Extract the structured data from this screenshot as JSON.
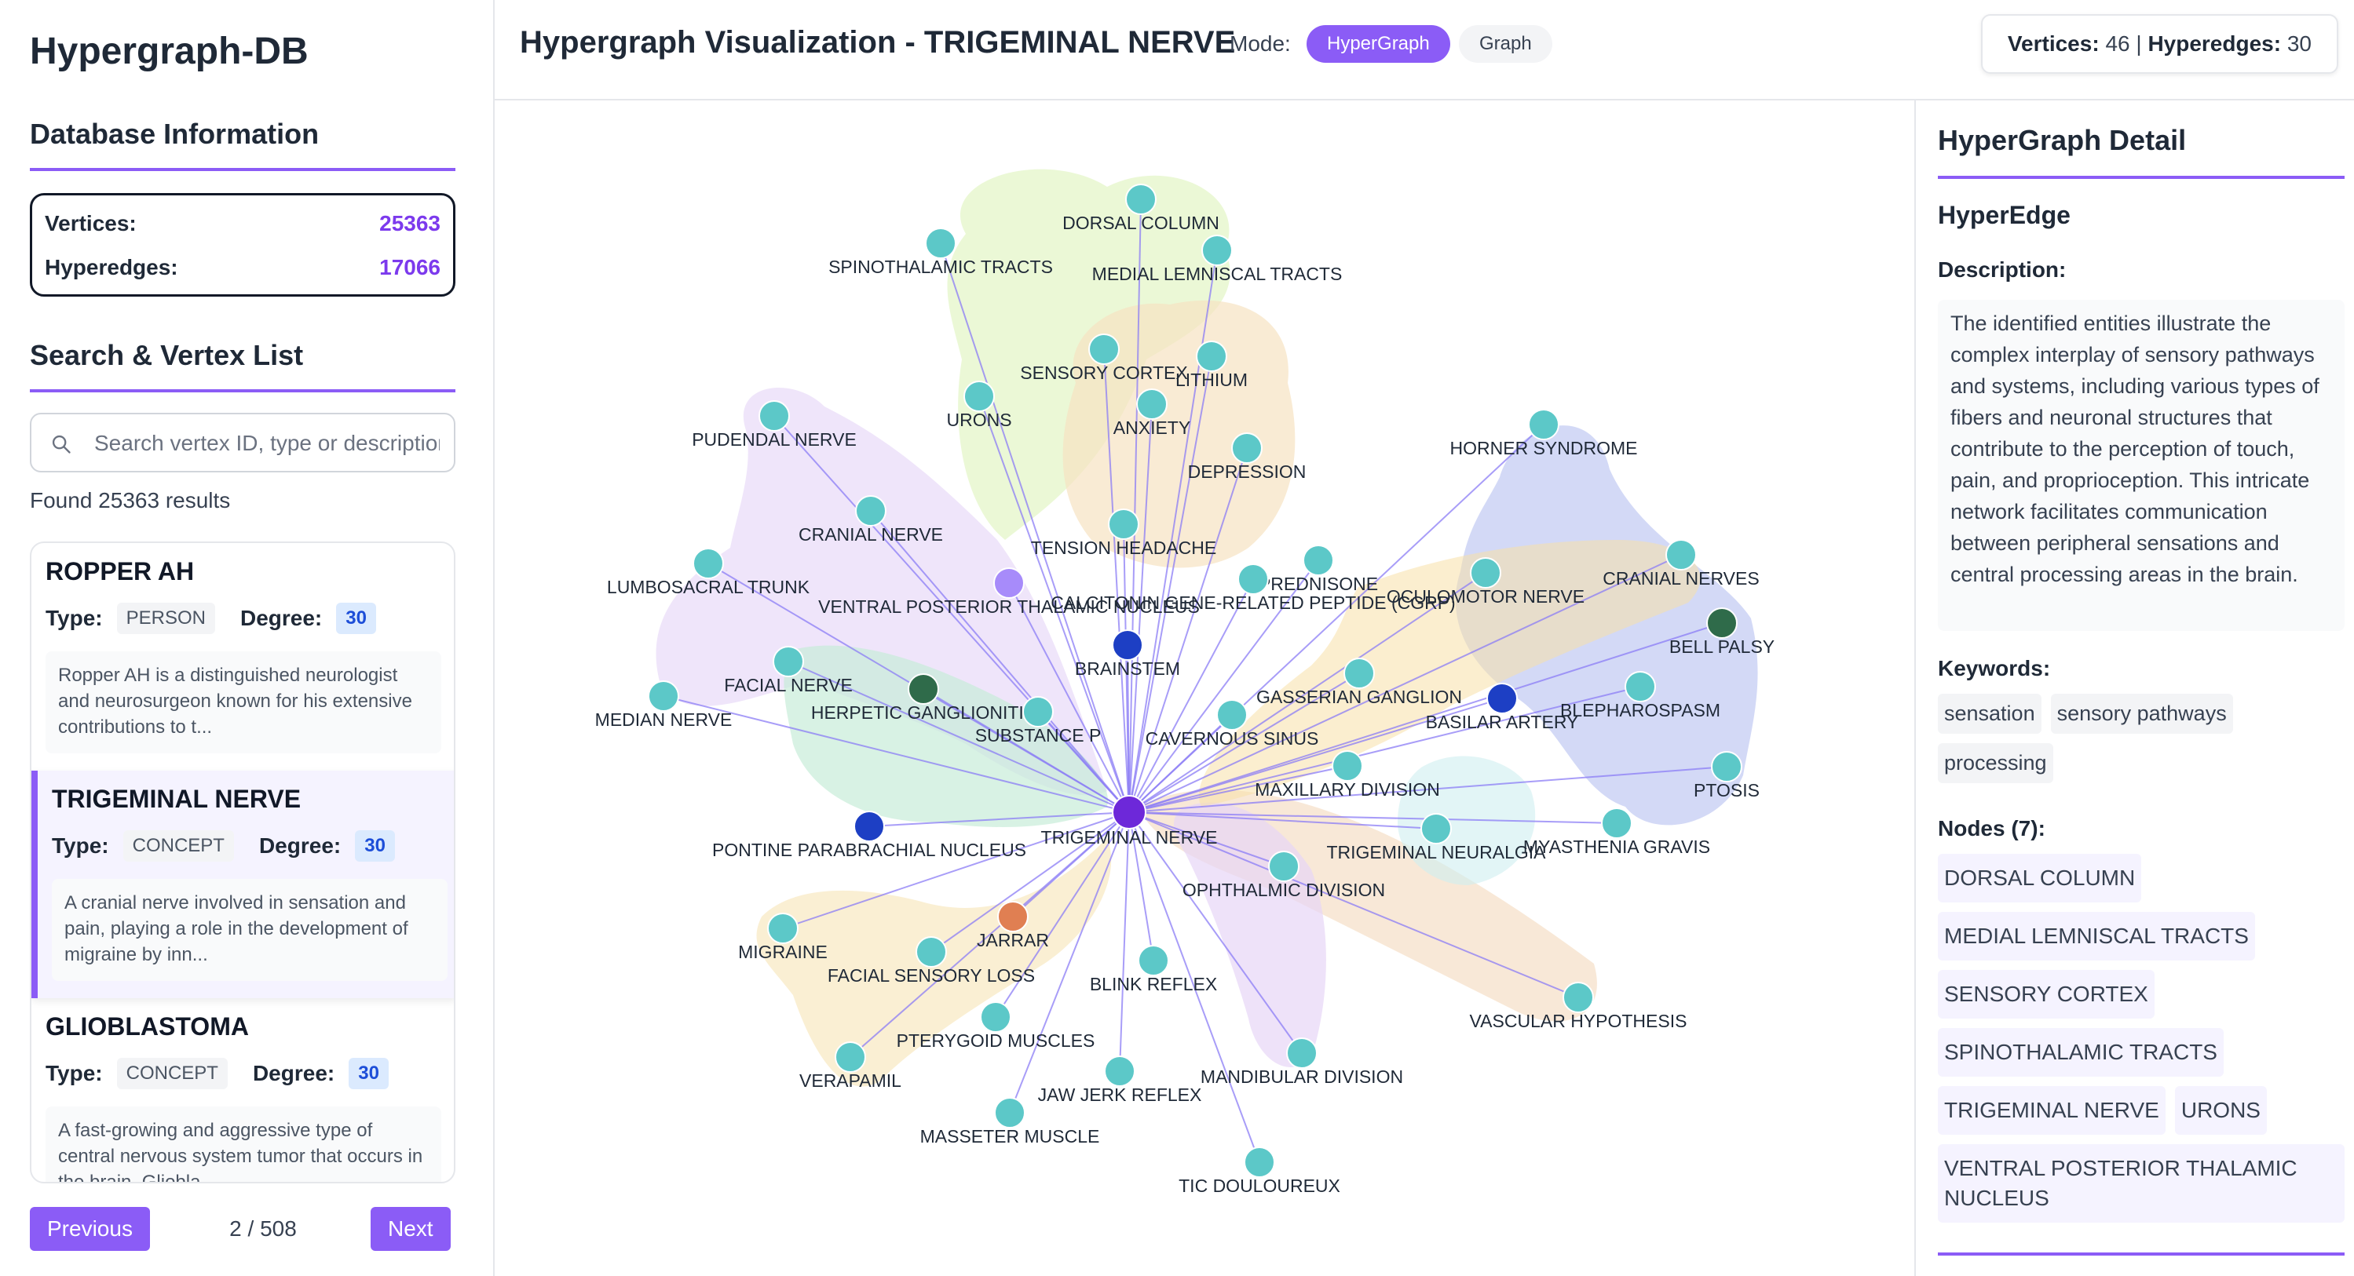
{
  "app": {
    "title": "Hypergraph-DB"
  },
  "database": {
    "title": "Database Information",
    "vertices_label": "Vertices:",
    "vertices_value": "25363",
    "hyperedges_label": "Hyperedges:",
    "hyperedges_value": "17066"
  },
  "search": {
    "title": "Search & Vertex List",
    "placeholder": "Search vertex ID, type or description",
    "found_text": "Found 25363 results"
  },
  "vertex_list": [
    {
      "name": "ROPPER AH",
      "type_label": "Type:",
      "type": "PERSON",
      "degree_label": "Degree:",
      "degree": "30",
      "description": "Ropper AH is a distinguished neurologist and neurosurgeon known for his extensive contributions to t..."
    },
    {
      "name": "TRIGEMINAL NERVE",
      "type_label": "Type:",
      "type": "CONCEPT",
      "degree_label": "Degree:",
      "degree": "30",
      "description": "A cranial nerve involved in sensation and pain, playing a role in the development of migraine by inn..."
    },
    {
      "name": "GLIOBLASTOMA",
      "type_label": "Type:",
      "type": "CONCEPT",
      "degree_label": "Degree:",
      "degree": "30",
      "description": "A fast-growing and aggressive type of central nervous system tumor that occurs in the brain. Gliobla..."
    }
  ],
  "pagination": {
    "previous": "Previous",
    "next": "Next",
    "page_info": "2 / 508"
  },
  "header": {
    "title": "Hypergraph Visualization - TRIGEMINAL NERVE",
    "mode_label": "Mode:",
    "mode_hypergraph": "HyperGraph",
    "mode_graph": "Graph",
    "stats_vertices_label": "Vertices:",
    "stats_vertices": "46",
    "stats_sep": "|",
    "stats_hyperedges_label": "Hyperedges:",
    "stats_hyperedges": "30"
  },
  "detail": {
    "title": "HyperGraph Detail",
    "subtitle": "HyperEdge",
    "description_label": "Description:",
    "description": "The identified entities illustrate the complex interplay of sensory pathways and systems, including various types of fibers and neuronal structures that contribute to the perception of touch, pain, and proprioception. This intricate network facilitates communication between peripheral sensations and central processing areas in the brain.",
    "keywords_label": "Keywords:",
    "keywords": [
      "sensation",
      "sensory pathways",
      "processing"
    ],
    "nodes_label": "Nodes (7):",
    "nodes": [
      "DORSAL COLUMN",
      "MEDIAL LEMNISCAL TRACTS",
      "SENSORY CORTEX",
      "SPINOTHALAMIC TRACTS",
      "TRIGEMINAL NERVE",
      "URONS",
      "VENTRAL POSTERIOR THALAMIC NUCLEUS"
    ]
  },
  "graph": {
    "colors": {
      "teal": "#5cc8c8",
      "center": "#6d28d9",
      "blue": "#1d3fc4",
      "green": "#2f6b4a",
      "lavender": "#a78bfa",
      "orange": "#e07f52",
      "edge": "#8b7cf6"
    },
    "nodes": [
      {
        "label": "TRIGEMINAL NERVE",
        "kind": "center"
      },
      {
        "label": "DORSAL COLUMN",
        "kind": "teal"
      },
      {
        "label": "SPINOTHALAMIC TRACTS",
        "kind": "teal"
      },
      {
        "label": "MEDIAL LEMNISCAL TRACTS",
        "kind": "teal"
      },
      {
        "label": "SENSORY CORTEX",
        "kind": "teal"
      },
      {
        "label": "URONS",
        "kind": "teal"
      },
      {
        "label": "LITHIUM",
        "kind": "teal"
      },
      {
        "label": "ANXIETY",
        "kind": "teal"
      },
      {
        "label": "DEPRESSION",
        "kind": "teal"
      },
      {
        "label": "PUDENDAL NERVE",
        "kind": "teal"
      },
      {
        "label": "HORNER SYNDROME",
        "kind": "teal"
      },
      {
        "label": "CRANIAL NERVE",
        "kind": "teal"
      },
      {
        "label": "TENSION HEADACHE",
        "kind": "teal"
      },
      {
        "label": "LUMBOSACRAL TRUNK",
        "kind": "teal"
      },
      {
        "label": "PREDNISONE",
        "kind": "teal"
      },
      {
        "label": "OCULOMOTOR NERVE",
        "kind": "teal"
      },
      {
        "label": "CRANIAL NERVES",
        "kind": "teal"
      },
      {
        "label": "VENTRAL POSTERIOR THALAMIC NUCLEUS",
        "kind": "lavender"
      },
      {
        "label": "CALCITONIN GENE-RELATED PEPTIDE (CGRP)",
        "kind": "teal"
      },
      {
        "label": "BELL PALSY",
        "kind": "green"
      },
      {
        "label": "FACIAL NERVE",
        "kind": "teal"
      },
      {
        "label": "BRAINSTEM",
        "kind": "blue"
      },
      {
        "label": "GASSERIAN GANGLION",
        "kind": "teal"
      },
      {
        "label": "MEDIAN NERVE",
        "kind": "teal"
      },
      {
        "label": "HERPETIC GANGLIONITIS",
        "kind": "green"
      },
      {
        "label": "SUBSTANCE P",
        "kind": "teal"
      },
      {
        "label": "CAVERNOUS SINUS",
        "kind": "teal"
      },
      {
        "label": "BASILAR ARTERY",
        "kind": "blue"
      },
      {
        "label": "BLEPHAROSPASM",
        "kind": "teal"
      },
      {
        "label": "MAXILLARY DIVISION",
        "kind": "teal"
      },
      {
        "label": "PTOSIS",
        "kind": "teal"
      },
      {
        "label": "PONTINE PARABRACHIAL NUCLEUS",
        "kind": "blue"
      },
      {
        "label": "TRIGEMINAL NEURALGIA",
        "kind": "teal"
      },
      {
        "label": "MYASTHENIA GRAVIS",
        "kind": "teal"
      },
      {
        "label": "OPHTHALMIC DIVISION",
        "kind": "teal"
      },
      {
        "label": "MIGRAINE",
        "kind": "teal"
      },
      {
        "label": "JARRAR",
        "kind": "orange"
      },
      {
        "label": "FACIAL SENSORY LOSS",
        "kind": "teal"
      },
      {
        "label": "BLINK REFLEX",
        "kind": "teal"
      },
      {
        "label": "VASCULAR HYPOTHESIS",
        "kind": "teal"
      },
      {
        "label": "PTERYGOID MUSCLES",
        "kind": "teal"
      },
      {
        "label": "VERAPAMIL",
        "kind": "teal"
      },
      {
        "label": "JAW JERK REFLEX",
        "kind": "teal"
      },
      {
        "label": "MANDIBULAR DIVISION",
        "kind": "teal"
      },
      {
        "label": "MASSETER MUSCLE",
        "kind": "teal"
      },
      {
        "label": "TIC DOULOUREUX",
        "kind": "teal"
      }
    ]
  }
}
